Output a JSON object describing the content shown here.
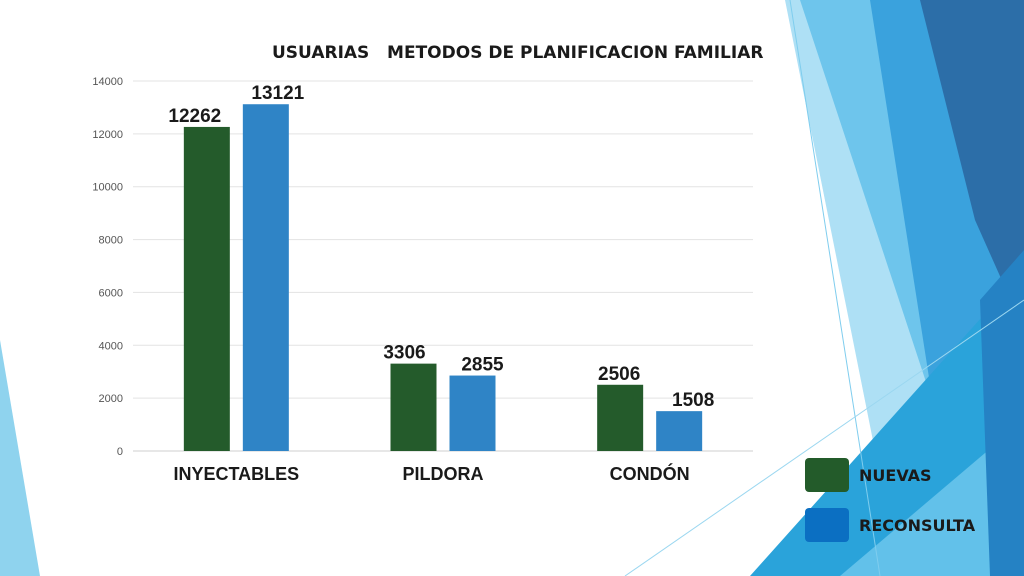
{
  "chart_data": {
    "type": "bar",
    "title": "USUARIAS   METODOS DE PLANIFICACION FAMILIAR",
    "categories": [
      "INYECTABLES",
      "PILDORA",
      "CONDÓN"
    ],
    "series": [
      {
        "name": "NUEVAS",
        "values": [
          12262,
          3306,
          2506
        ],
        "color": "#245b2b"
      },
      {
        "name": "RECONSULTA",
        "values": [
          13121,
          2855,
          1508
        ],
        "color": "#2f84c6"
      }
    ],
    "data_labels": [
      [
        "12262",
        "3306",
        "2506"
      ],
      [
        "13121",
        "2855",
        "1508"
      ]
    ],
    "y_ticks": [
      "0",
      "2000",
      "4000",
      "6000",
      "8000",
      "10000",
      "12000",
      "14000"
    ],
    "ylim": [
      0,
      14000
    ],
    "grid": true,
    "legend": "bottom-right"
  },
  "legend_colors": {
    "NUEVAS": "#235b2a",
    "RECONSULTA": "#0b6fc2"
  }
}
